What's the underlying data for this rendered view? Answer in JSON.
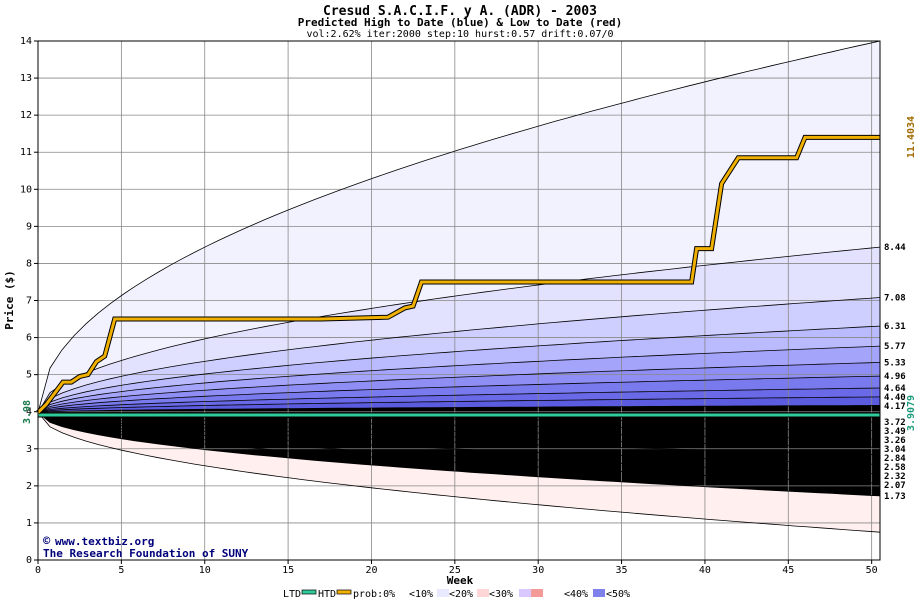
{
  "chart_data": {
    "type": "area",
    "title": "Cresud S.A.C.I.F. y A. (ADR) - 2003",
    "subtitle": "Predicted High to Date (blue) &  Low to Date (red)",
    "params": "vol:2.62% iter:2000 step:10 hurst:0.57 drift:0.07/0",
    "xlabel": "Week",
    "ylabel": "Price ($)",
    "xlim": [
      0,
      50.5
    ],
    "ylim": [
      0,
      14
    ],
    "x_ticks": [
      0,
      5,
      10,
      15,
      20,
      25,
      30,
      35,
      40,
      45,
      50
    ],
    "y_ticks": [
      0,
      1,
      2,
      3,
      4,
      5,
      6,
      7,
      8,
      9,
      10,
      11,
      12,
      13,
      14
    ],
    "start_price": 3.98,
    "start_label": "3.98",
    "high_end_label": "11.4034",
    "low_end_label": "3.9079",
    "high_levels": [
      {
        "label": "8.44",
        "value": 8.44
      },
      {
        "label": "7.08",
        "value": 7.08
      },
      {
        "label": "6.31",
        "value": 6.31
      },
      {
        "label": "5.77",
        "value": 5.77
      },
      {
        "label": "5.33",
        "value": 5.33
      },
      {
        "label": "4.96",
        "value": 4.96
      },
      {
        "label": "4.64",
        "value": 4.64
      },
      {
        "label": "4.40",
        "value": 4.4
      },
      {
        "label": "4.17",
        "value": 4.17
      }
    ],
    "low_levels": [
      {
        "label": "3.72",
        "value": 3.72
      },
      {
        "label": "3.49",
        "value": 3.49
      },
      {
        "label": "3.26",
        "value": 3.26
      },
      {
        "label": "3.04",
        "value": 3.04
      },
      {
        "label": "2.84",
        "value": 2.84
      },
      {
        "label": "2.58",
        "value": 2.58
      },
      {
        "label": "2.32",
        "value": 2.32
      },
      {
        "label": "2.07",
        "value": 2.07
      },
      {
        "label": "1.73",
        "value": 1.73
      }
    ],
    "outer_high_end": 14.0,
    "outer_low_end": 0.75,
    "htd_series": {
      "name": "HTD",
      "x": [
        0,
        0.5,
        1.0,
        1.5,
        2.0,
        2.5,
        3.0,
        3.5,
        4.0,
        4.3,
        4.6,
        17,
        21,
        22,
        22.5,
        23,
        39.2,
        39.5,
        40.4,
        41,
        42,
        45.5,
        46,
        50.5
      ],
      "y": [
        3.98,
        4.2,
        4.5,
        4.8,
        4.8,
        4.95,
        5.0,
        5.35,
        5.5,
        6.0,
        6.5,
        6.5,
        6.55,
        6.8,
        6.85,
        7.5,
        7.5,
        8.4,
        8.4,
        10.15,
        10.85,
        10.85,
        11.4,
        11.4
      ]
    },
    "ltd_series": {
      "name": "LTD",
      "x": [
        0,
        50.5
      ],
      "y": [
        3.91,
        3.91
      ]
    },
    "legend": {
      "ltd": "LTD",
      "htd": "HTD",
      "prob": "prob:0%",
      "b10": "<10%",
      "b20": "<20%",
      "b30": "<30%",
      "b40": "<40%",
      "b50": "<50%"
    },
    "colors": {
      "htd": "#f0b000",
      "ltd": "#2ecc9a",
      "high_bands": [
        "#f2f2ff",
        "#e2e2ff",
        "#cfcfff",
        "#babaff",
        "#a4a4fb",
        "#8e8ef5",
        "#7a7aef",
        "#6a6ae8",
        "#5c5ce0"
      ],
      "low_bands": [
        "#fff0ef",
        "#ffe0dd",
        "#ffcfcb",
        "#ffbcb7",
        "#fba8a3",
        "#f5948f",
        "#ef837e",
        "#ea7570",
        "#e56a66"
      ],
      "grid": "#888888",
      "legend_chips": [
        "#ffffff",
        "#e8e8ff",
        "#ffd6d6",
        "#d8c8ff",
        "#f49a96",
        "#8080ec"
      ]
    },
    "grid": true
  },
  "credit": {
    "copyright_symbol": "©",
    "url": "www.textbiz.org",
    "org": "The Research Foundation of SUNY"
  }
}
